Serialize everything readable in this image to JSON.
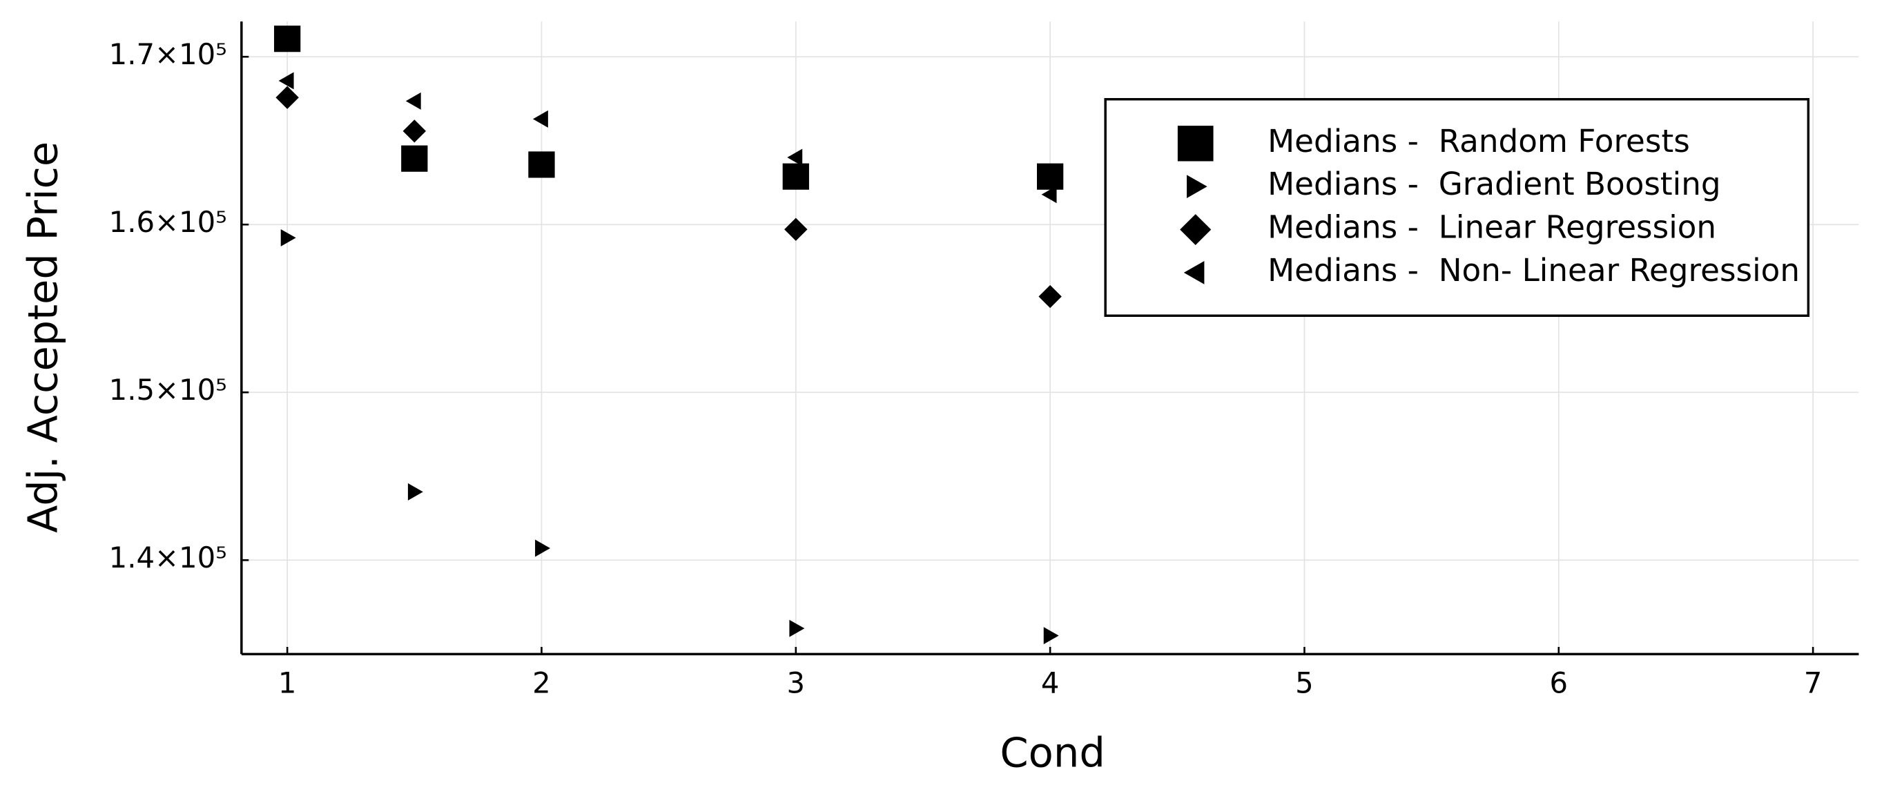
{
  "chart_data": {
    "type": "scatter",
    "x_label": "Cond",
    "y_label": "Adj. Accepted Price",
    "xlim": [
      0.82,
      7.18
    ],
    "ylim": [
      134400,
      172100
    ],
    "xticks": [
      1,
      2,
      3,
      4,
      5,
      6,
      7
    ],
    "yticks": [
      {
        "value": 140000,
        "label": "1.4×10⁵"
      },
      {
        "value": 150000,
        "label": "1.5×10⁵"
      },
      {
        "value": 160000,
        "label": "1.6×10⁵"
      },
      {
        "value": 170000,
        "label": "1.7×10⁵"
      }
    ],
    "grid": true,
    "legend": "upper right",
    "series": [
      {
        "name": "Medians -  Random Forests",
        "color": "#000000",
        "marker": "square",
        "x": [
          1,
          1.5,
          2,
          3,
          4
        ],
        "values": [
          171070,
          163930,
          163570,
          162860,
          162860
        ]
      },
      {
        "name": "Medians -  Gradient Boosting",
        "color": "#000000",
        "marker": "triangle-right",
        "x": [
          1,
          1.5,
          2,
          3,
          4
        ],
        "values": [
          159210,
          144070,
          140710,
          135930,
          135500
        ]
      },
      {
        "name": "Medians -  Linear Regression",
        "color": "#000000",
        "marker": "diamond",
        "x": [
          1,
          1.5,
          3,
          4
        ],
        "values": [
          167570,
          165570,
          159710,
          155710
        ]
      },
      {
        "name": "Medians -  Non- Linear Regression",
        "color": "#000000",
        "marker": "triangle-left",
        "x": [
          1,
          1.5,
          2,
          3,
          4
        ],
        "values": [
          168570,
          167360,
          166290,
          164000,
          161790
        ]
      }
    ]
  }
}
